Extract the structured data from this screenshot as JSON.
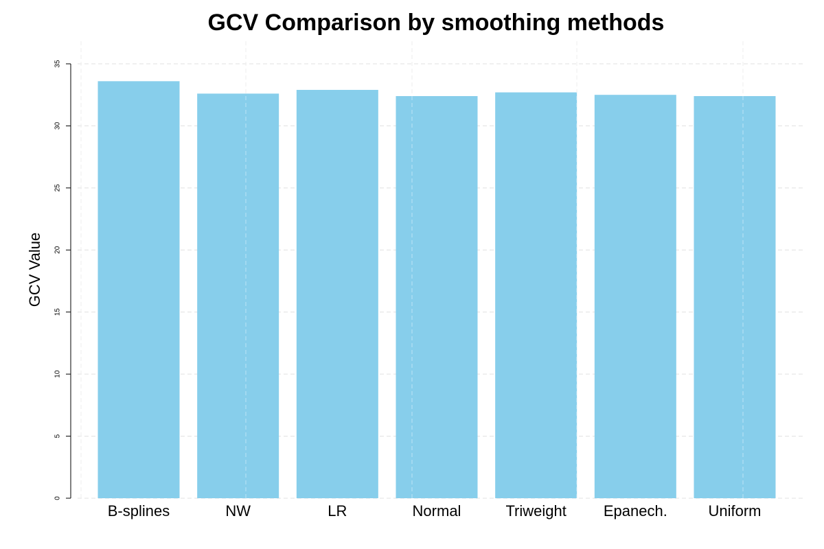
{
  "chart_data": {
    "type": "bar",
    "title": "GCV Comparison by smoothing methods",
    "xlabel": "",
    "ylabel": "GCV Value",
    "categories": [
      "B-splines",
      "NW",
      "LR",
      "Normal",
      "Triweight",
      "Epanech.",
      "Uniform"
    ],
    "values": [
      33.6,
      32.6,
      32.9,
      32.4,
      32.7,
      32.5,
      32.4
    ],
    "ylim": [
      0,
      35
    ],
    "yticks": [
      "0",
      "5",
      "10",
      "15",
      "20",
      "25",
      "30",
      "35"
    ],
    "grid": true,
    "legend": "none",
    "colors": {
      "bar": "#87CEEB"
    }
  }
}
